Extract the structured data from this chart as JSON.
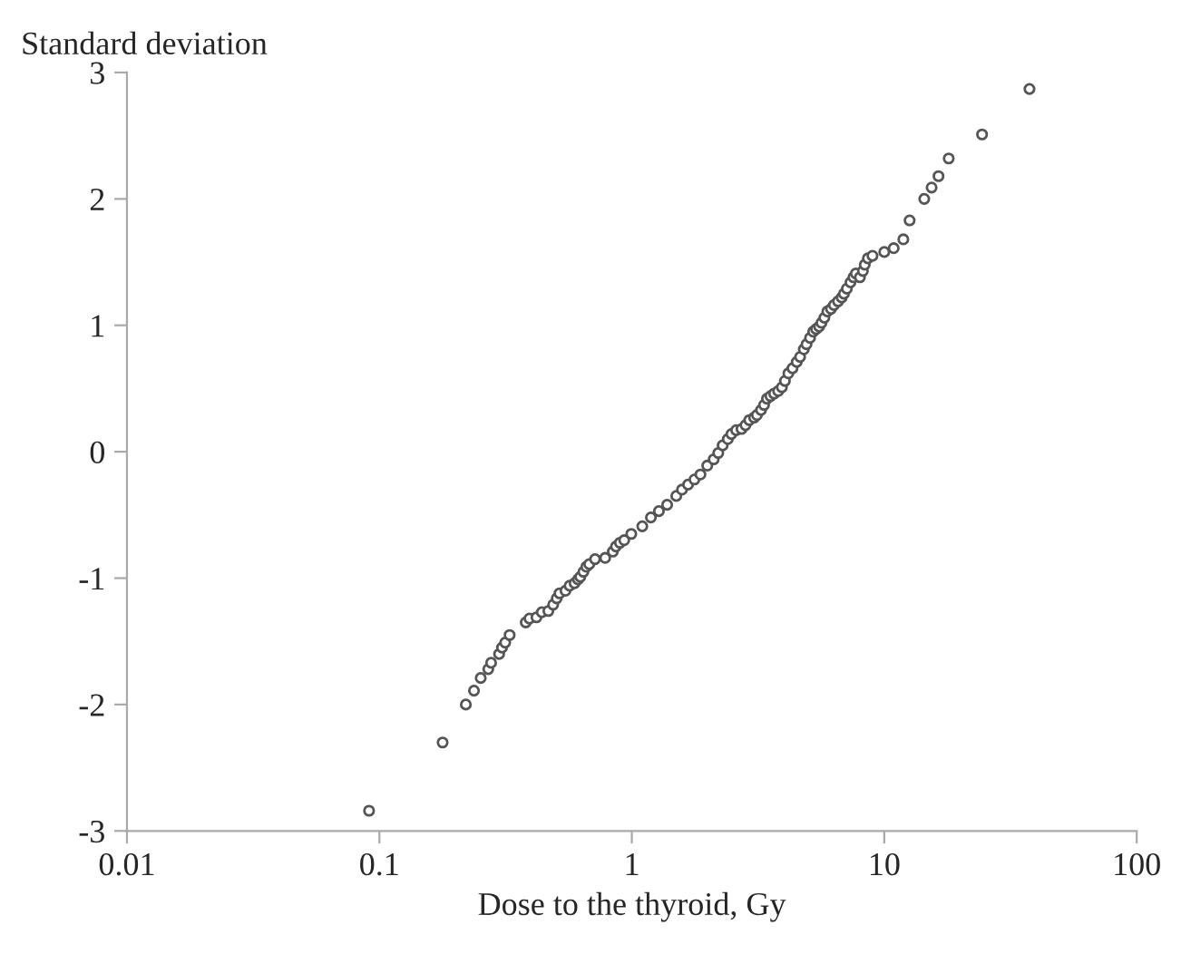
{
  "chart_data": {
    "type": "scatter",
    "xlabel": "Dose to the thyroid, Gy",
    "ylabel": "Standard deviation",
    "log": "x",
    "xlim": [
      0.01,
      100
    ],
    "xticks": [
      0.01,
      0.1,
      1,
      10,
      100
    ],
    "ylim": [
      -3,
      3
    ],
    "yticks": [
      -3,
      -2,
      -1,
      0,
      1,
      2,
      3
    ],
    "grid": false,
    "marker": "circle",
    "series": [
      {
        "color": "#555555",
        "x": [
          0.091,
          0.178,
          0.22,
          0.237,
          0.252,
          0.27,
          0.277,
          0.298,
          0.306,
          0.315,
          0.328,
          0.38,
          0.393,
          0.419,
          0.44,
          0.467,
          0.488,
          0.504,
          0.517,
          0.546,
          0.567,
          0.593,
          0.612,
          0.625,
          0.643,
          0.66,
          0.678,
          0.715,
          0.784,
          0.841,
          0.865,
          0.897,
          0.933,
          0.995,
          1.1,
          1.19,
          1.28,
          1.38,
          1.5,
          1.58,
          1.67,
          1.77,
          1.87,
          1.99,
          2.11,
          2.2,
          2.29,
          2.4,
          2.48,
          2.59,
          2.72,
          2.82,
          2.92,
          3.05,
          3.13,
          3.25,
          3.34,
          3.43,
          3.54,
          3.66,
          3.8,
          3.93,
          4.04,
          4.17,
          4.33,
          4.5,
          4.64,
          4.8,
          4.92,
          5.08,
          5.23,
          5.37,
          5.52,
          5.64,
          5.79,
          5.95,
          6.15,
          6.32,
          6.56,
          6.78,
          6.92,
          7.11,
          7.35,
          7.55,
          7.71,
          8.01,
          8.23,
          8.37,
          8.61,
          8.98,
          10.0,
          10.9,
          11.9,
          12.6,
          14.4,
          15.4,
          16.4,
          18.0,
          24.4,
          37.6
        ],
        "values": [
          -2.84,
          -2.3,
          -2.0,
          -1.89,
          -1.79,
          -1.72,
          -1.67,
          -1.6,
          -1.55,
          -1.51,
          -1.45,
          -1.35,
          -1.32,
          -1.31,
          -1.27,
          -1.26,
          -1.21,
          -1.16,
          -1.12,
          -1.1,
          -1.06,
          -1.04,
          -1.01,
          -0.99,
          -0.95,
          -0.91,
          -0.89,
          -0.85,
          -0.84,
          -0.79,
          -0.75,
          -0.72,
          -0.7,
          -0.65,
          -0.59,
          -0.52,
          -0.47,
          -0.42,
          -0.35,
          -0.3,
          -0.26,
          -0.22,
          -0.18,
          -0.11,
          -0.06,
          -0.01,
          0.05,
          0.1,
          0.14,
          0.17,
          0.18,
          0.21,
          0.25,
          0.27,
          0.29,
          0.33,
          0.37,
          0.42,
          0.44,
          0.46,
          0.48,
          0.51,
          0.56,
          0.62,
          0.66,
          0.71,
          0.75,
          0.81,
          0.85,
          0.9,
          0.95,
          0.97,
          0.99,
          1.02,
          1.06,
          1.11,
          1.13,
          1.16,
          1.19,
          1.22,
          1.25,
          1.29,
          1.34,
          1.38,
          1.41,
          1.38,
          1.43,
          1.48,
          1.53,
          1.55,
          1.58,
          1.61,
          1.68,
          1.83,
          2.0,
          2.09,
          2.18,
          2.32,
          2.51,
          2.87
        ]
      }
    ]
  }
}
